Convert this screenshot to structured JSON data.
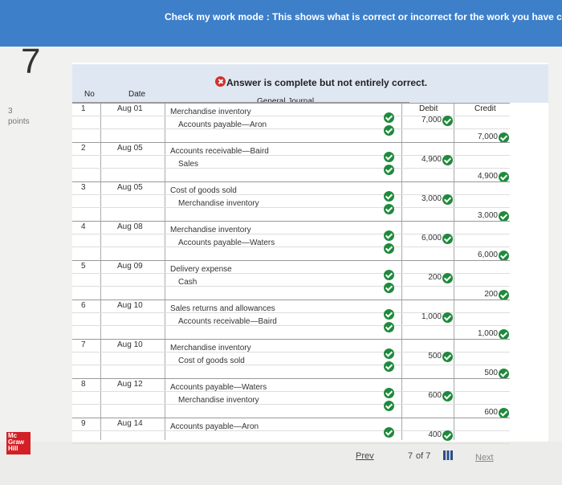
{
  "header": {
    "banner": "Check my work mode : This shows what is correct or incorrect for the work you have completed"
  },
  "question": {
    "number": "7",
    "points_value": "3",
    "points_label": "points"
  },
  "message": "Answer is complete but not entirely correct.",
  "table": {
    "columns": [
      "No",
      "Date",
      "General Journal",
      "Debit",
      "Credit"
    ],
    "entries": [
      {
        "no": "1",
        "date": "Aug 01",
        "debit_account": "Merchandise inventory",
        "credit_account": "Accounts payable—Aron",
        "debit": "7,000",
        "credit": "7,000"
      },
      {
        "no": "2",
        "date": "Aug 05",
        "debit_account": "Accounts receivable—Baird",
        "credit_account": "Sales",
        "debit": "4,900",
        "credit": "4,900"
      },
      {
        "no": "3",
        "date": "Aug 05",
        "debit_account": "Cost of goods sold",
        "credit_account": "Merchandise inventory",
        "debit": "3,000",
        "credit": "3,000"
      },
      {
        "no": "4",
        "date": "Aug 08",
        "debit_account": "Merchandise inventory",
        "credit_account": "Accounts payable—Waters",
        "debit": "6,000",
        "credit": "6,000"
      },
      {
        "no": "5",
        "date": "Aug 09",
        "debit_account": "Delivery expense",
        "credit_account": "Cash",
        "debit": "200",
        "credit": "200"
      },
      {
        "no": "6",
        "date": "Aug 10",
        "debit_account": "Sales returns and allowances",
        "credit_account": "Accounts receivable—Baird",
        "debit": "1,000",
        "credit": "1,000"
      },
      {
        "no": "7",
        "date": "Aug 10",
        "debit_account": "Merchandise inventory",
        "credit_account": "Cost of goods sold",
        "debit": "500",
        "credit": "500"
      },
      {
        "no": "8",
        "date": "Aug 12",
        "debit_account": "Accounts payable—Waters",
        "credit_account": "Merchandise inventory",
        "debit": "600",
        "credit": "600"
      },
      {
        "no": "9",
        "date": "Aug 14",
        "debit_account": "Accounts payable—Aron",
        "debit": "400"
      }
    ]
  },
  "footer": {
    "logo": [
      "Mc",
      "Graw",
      "Hill"
    ],
    "prev": "Prev",
    "page": "7",
    "of": "of 7",
    "next": "Next"
  }
}
